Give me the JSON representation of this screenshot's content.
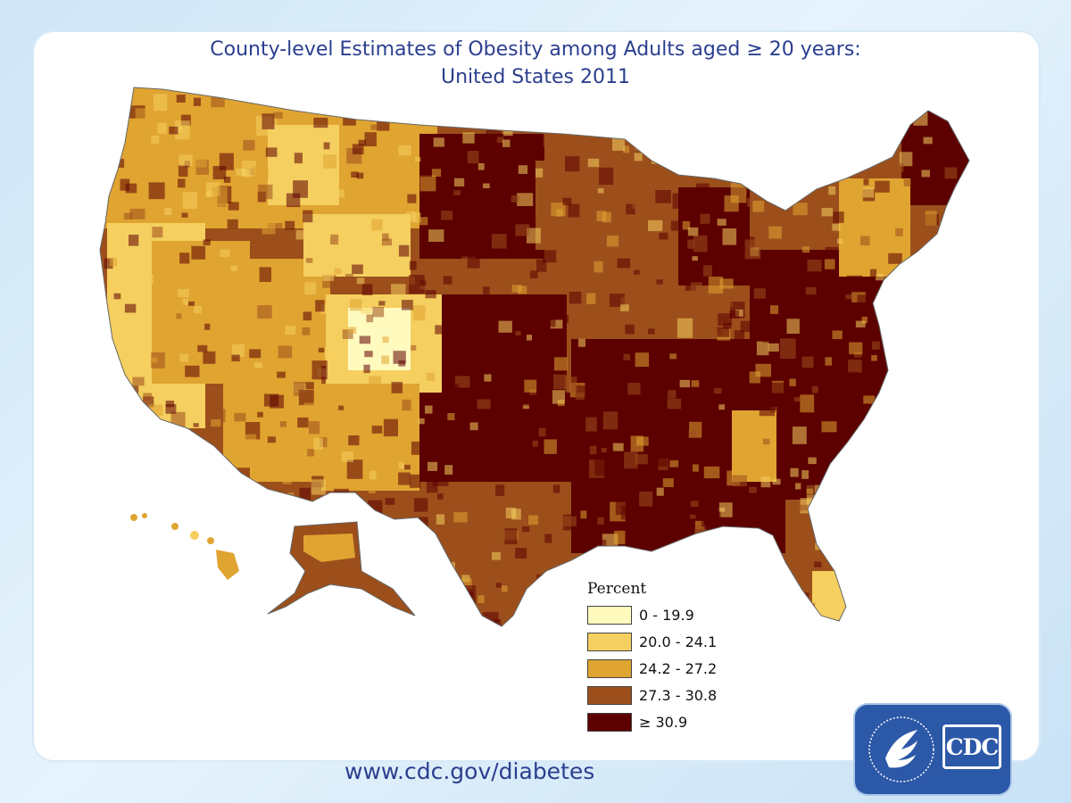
{
  "title": {
    "line1": "County-level Estimates of Obesity among Adults aged ≥ 20 years:",
    "line2": "United States 2011"
  },
  "legend": {
    "title": "Percent",
    "items": [
      {
        "label": "0 - 19.9",
        "color": "#fffbbf"
      },
      {
        "label": "20.0 - 24.1",
        "color": "#f5cf5f"
      },
      {
        "label": "24.2 - 27.2",
        "color": "#e0a431"
      },
      {
        "label": "27.3 - 30.8",
        "color": "#9c4f1b"
      },
      {
        "label": "≥ 30.9",
        "color": "#5c0000"
      }
    ]
  },
  "colors": {
    "c1": "#fffbbf",
    "c2": "#f5cf5f",
    "c3": "#e0a431",
    "c4": "#9c4f1b",
    "c5": "#5c0000",
    "title_blue": "#2b3f8f",
    "cdc_blue": "#2c58a8"
  },
  "footer": {
    "url": "www.cdc.gov/diabetes"
  },
  "logo": {
    "text": "CDC"
  }
}
